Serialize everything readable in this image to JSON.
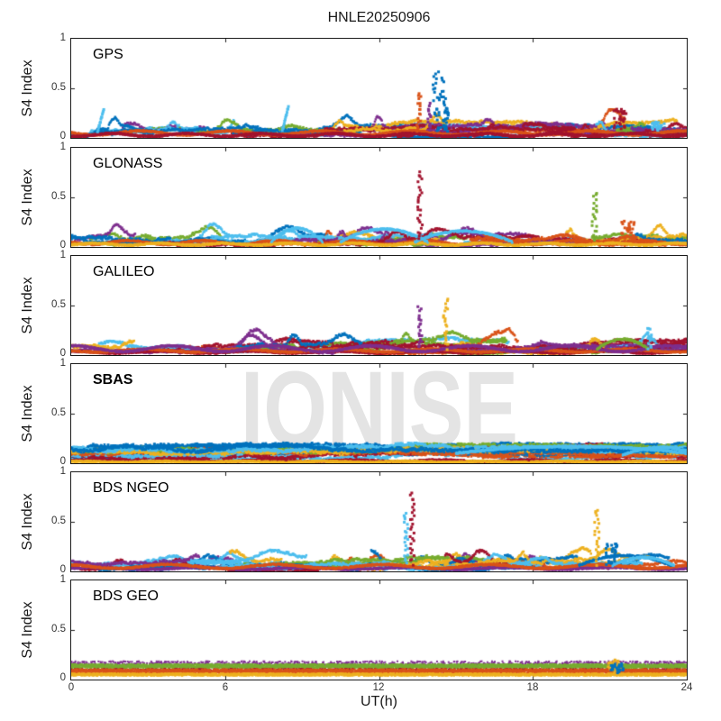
{
  "chart_data": {
    "type": "scatter",
    "title": "HNLE20250906",
    "xlabel": "UT(h)",
    "ylabel": "S4 Index",
    "watermark": "IONISE",
    "xlim": [
      0,
      24
    ],
    "ylim": [
      0,
      1
    ],
    "xtick_hours": [
      0,
      6,
      12,
      18,
      24
    ],
    "xticklabels": [
      "0",
      "6",
      "12",
      "18",
      "24"
    ],
    "yticklabels": [
      "1",
      "0.5",
      "0"
    ],
    "axis_color": "#1a1a1a",
    "tick_label_color": "#333333",
    "watermark_color": "#e4e4e4",
    "palette": [
      "#0072BD",
      "#D95319",
      "#EDB120",
      "#7E2F8E",
      "#77AC30",
      "#4DBEEE",
      "#A2142F"
    ],
    "panels": [
      {
        "label": "GPS",
        "bold": false,
        "arcs": 34,
        "base_max": 0.16,
        "floors": [
          {
            "color": "#D95319",
            "level": 0.05,
            "amp": 0.02
          },
          {
            "color": "#A2142F",
            "level": 0.03,
            "amp": 0.015
          }
        ],
        "arches": [],
        "spikes": [
          {
            "t": 1.15,
            "peak": 0.28,
            "color": "#4DBEEE",
            "type": "streak"
          },
          {
            "t": 8.35,
            "peak": 0.32,
            "color": "#4DBEEE",
            "type": "streak"
          },
          {
            "t": 13.55,
            "peak": 0.45,
            "color": "#D95319",
            "type": "dotted"
          },
          {
            "t": 13.95,
            "peak": 0.34,
            "color": "#7E2F8E",
            "type": "dotted"
          },
          {
            "t": 14.35,
            "peak": 0.67,
            "color": "#0072BD",
            "type": "cluster"
          },
          {
            "t": 14.62,
            "peak": 0.35,
            "color": "#0072BD",
            "type": "dotted"
          },
          {
            "t": 21.4,
            "peak": 0.3,
            "color": "#A2142F",
            "type": "cluster"
          },
          {
            "t": 22.9,
            "peak": 0.16,
            "color": "#4DBEEE",
            "type": "cluster"
          }
        ]
      },
      {
        "label": "GLONASS",
        "bold": false,
        "arcs": 30,
        "base_max": 0.13,
        "floors": [
          {
            "color": "#D95319",
            "level": 0.045,
            "amp": 0.02
          },
          {
            "color": "#EDB120",
            "level": 0.028,
            "amp": 0.01
          }
        ],
        "arches": [
          {
            "t": 8.8,
            "width": 1.0,
            "base": 0.05,
            "amp": 0.14,
            "color": "#4DBEEE"
          },
          {
            "t": 12.2,
            "width": 1.7,
            "base": 0.05,
            "amp": 0.13,
            "color": "#4DBEEE"
          },
          {
            "t": 15.3,
            "width": 1.9,
            "base": 0.05,
            "amp": 0.11,
            "color": "#4DBEEE"
          }
        ],
        "spikes": [
          {
            "t": 13.6,
            "peak": 0.76,
            "color": "#A2142F",
            "type": "dotted"
          },
          {
            "t": 20.4,
            "peak": 0.55,
            "color": "#77AC30",
            "type": "dotted"
          },
          {
            "t": 21.7,
            "peak": 0.26,
            "color": "#D95319",
            "type": "cluster"
          }
        ]
      },
      {
        "label": "GALILEO",
        "bold": false,
        "arcs": 30,
        "base_max": 0.15,
        "floors": [
          {
            "color": "#A2142F",
            "level": 0.03,
            "amp": 0.01
          },
          {
            "color": "#D95319",
            "level": 0.045,
            "amp": 0.015
          },
          {
            "color": "#7E2F8E",
            "level": 0.065,
            "amp": 0.03
          }
        ],
        "arches": [
          {
            "t": 21.5,
            "width": 1.0,
            "base": 0.06,
            "amp": 0.1,
            "color": "#77AC30"
          }
        ],
        "spikes": [
          {
            "t": 13.6,
            "peak": 0.48,
            "color": "#7E2F8E",
            "type": "dotted"
          },
          {
            "t": 14.6,
            "peak": 0.56,
            "color": "#EDB120",
            "type": "dotted"
          },
          {
            "t": 22.55,
            "peak": 0.28,
            "color": "#4DBEEE",
            "type": "dotted"
          }
        ]
      },
      {
        "label": "SBAS",
        "bold": true,
        "dense": true,
        "trace_colors": [
          "#0072BD",
          "#D95319",
          "#4DBEEE",
          "#A2142F",
          "#0072BD",
          "#4DBEEE",
          "#D95319",
          "#0072BD",
          "#A2142F",
          "#4DBEEE",
          "#D95319",
          "#0072BD",
          "#77AC30",
          "#EDB120",
          "#4DBEEE",
          "#0072BD"
        ],
        "floors": [
          {
            "color": "#A2142F",
            "level": 0.025,
            "amp": 0.008
          },
          {
            "color": "#EDB120",
            "level": 0.015,
            "amp": 0.005
          }
        ],
        "arches": [
          {
            "t": 19.5,
            "width": 4.5,
            "base": 0.1,
            "amp": 0.07,
            "color": "#4DBEEE"
          },
          {
            "t": 23.0,
            "width": 1.5,
            "base": 0.08,
            "amp": 0.08,
            "color": "#4DBEEE"
          }
        ],
        "spikes": []
      },
      {
        "label": "BDS NGEO",
        "bold": false,
        "arcs": 32,
        "base_max": 0.14,
        "floors": [
          {
            "color": "#7E2F8E",
            "level": 0.03,
            "amp": 0.01
          },
          {
            "color": "#D95319",
            "level": 0.05,
            "amp": 0.02
          }
        ],
        "arches": [
          {
            "t": 21.6,
            "width": 1.8,
            "base": 0.06,
            "amp": 0.1,
            "color": "#0072BD"
          },
          {
            "t": 22.3,
            "width": 1.2,
            "base": 0.06,
            "amp": 0.08,
            "color": "#4DBEEE"
          }
        ],
        "spikes": [
          {
            "t": 13.05,
            "peak": 0.6,
            "color": "#4DBEEE",
            "type": "dotted"
          },
          {
            "t": 13.3,
            "peak": 0.8,
            "color": "#A2142F",
            "type": "dotted"
          },
          {
            "t": 20.5,
            "peak": 0.63,
            "color": "#EDB120",
            "type": "dotted"
          },
          {
            "t": 21.1,
            "peak": 0.28,
            "color": "#0072BD",
            "type": "cluster"
          }
        ]
      },
      {
        "label": "BDS GEO",
        "bold": false,
        "bands": [
          {
            "color": "#7E2F8E",
            "level": 0.165,
            "noise": 0.02,
            "density": 0.5
          },
          {
            "color": "#77AC30",
            "level": 0.135,
            "noise": 0.02,
            "density": 1
          },
          {
            "color": "#A2142F",
            "level": 0.1,
            "noise": 0.008,
            "density": 0.4
          },
          {
            "color": "#D95319",
            "level": 0.082,
            "noise": 0.022,
            "density": 1
          },
          {
            "color": "#EDB120",
            "level": 0.05,
            "noise": 0.012,
            "density": 0.9
          }
        ],
        "floors": [],
        "arches": [],
        "spikes": [
          {
            "t": 21.15,
            "peak": 0.2,
            "color": "#EDB120",
            "type": "cluster"
          },
          {
            "t": 21.3,
            "peak": 0.16,
            "color": "#0072BD",
            "type": "cluster"
          }
        ]
      }
    ]
  }
}
